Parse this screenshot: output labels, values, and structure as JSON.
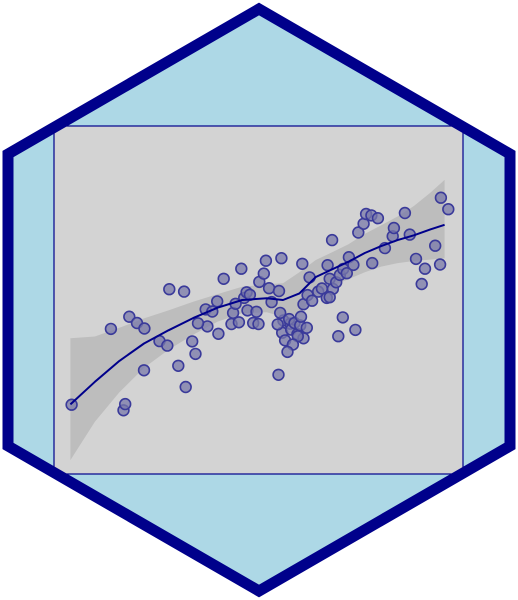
{
  "colors": {
    "hex_fill": "#add8e6",
    "hex_border": "#00008b",
    "panel_fill": "#d3d3d3",
    "panel_border": "#00008b",
    "band_fill": "#bdbdbd",
    "point_fill": "#7a7aaa",
    "point_stroke": "#3a3a9a",
    "smooth_line": "#00008b"
  },
  "chart_data": {
    "type": "scatter",
    "title": "",
    "xlabel": "",
    "ylabel": "",
    "xlim": [
      0,
      1
    ],
    "ylim": [
      0,
      1
    ],
    "grid": false,
    "legend": "none",
    "points": [
      [
        0.043,
        0.199
      ],
      [
        0.17,
        0.183
      ],
      [
        0.174,
        0.201
      ],
      [
        0.139,
        0.417
      ],
      [
        0.184,
        0.452
      ],
      [
        0.203,
        0.434
      ],
      [
        0.221,
        0.418
      ],
      [
        0.22,
        0.298
      ],
      [
        0.258,
        0.382
      ],
      [
        0.277,
        0.369
      ],
      [
        0.282,
        0.531
      ],
      [
        0.318,
        0.524
      ],
      [
        0.304,
        0.311
      ],
      [
        0.322,
        0.25
      ],
      [
        0.338,
        0.381
      ],
      [
        0.346,
        0.345
      ],
      [
        0.375,
        0.424
      ],
      [
        0.352,
        0.433
      ],
      [
        0.371,
        0.473
      ],
      [
        0.387,
        0.467
      ],
      [
        0.399,
        0.496
      ],
      [
        0.402,
        0.403
      ],
      [
        0.415,
        0.561
      ],
      [
        0.434,
        0.431
      ],
      [
        0.438,
        0.463
      ],
      [
        0.444,
        0.489
      ],
      [
        0.452,
        0.436
      ],
      [
        0.465,
        0.506
      ],
      [
        0.471,
        0.522
      ],
      [
        0.458,
        0.59
      ],
      [
        0.473,
        0.47
      ],
      [
        0.479,
        0.515
      ],
      [
        0.487,
        0.434
      ],
      [
        0.495,
        0.466
      ],
      [
        0.5,
        0.431
      ],
      [
        0.502,
        0.552
      ],
      [
        0.513,
        0.576
      ],
      [
        0.518,
        0.613
      ],
      [
        0.526,
        0.534
      ],
      [
        0.532,
        0.494
      ],
      [
        0.55,
        0.526
      ],
      [
        0.561,
        0.441
      ],
      [
        0.558,
        0.406
      ],
      [
        0.578,
        0.432
      ],
      [
        0.58,
        0.415
      ],
      [
        0.547,
        0.43
      ],
      [
        0.553,
        0.463
      ],
      [
        0.565,
        0.384
      ],
      [
        0.575,
        0.445
      ],
      [
        0.588,
        0.434
      ],
      [
        0.595,
        0.402
      ],
      [
        0.602,
        0.427
      ],
      [
        0.604,
        0.452
      ],
      [
        0.61,
        0.39
      ],
      [
        0.618,
        0.42
      ],
      [
        0.596,
        0.396
      ],
      [
        0.584,
        0.372
      ],
      [
        0.571,
        0.351
      ],
      [
        0.61,
        0.488
      ],
      [
        0.62,
        0.514
      ],
      [
        0.631,
        0.498
      ],
      [
        0.646,
        0.524
      ],
      [
        0.655,
        0.533
      ],
      [
        0.667,
        0.506
      ],
      [
        0.674,
        0.561
      ],
      [
        0.682,
        0.532
      ],
      [
        0.69,
        0.551
      ],
      [
        0.699,
        0.572
      ],
      [
        0.707,
        0.589
      ],
      [
        0.716,
        0.577
      ],
      [
        0.721,
        0.623
      ],
      [
        0.732,
        0.601
      ],
      [
        0.744,
        0.694
      ],
      [
        0.757,
        0.719
      ],
      [
        0.763,
        0.747
      ],
      [
        0.776,
        0.743
      ],
      [
        0.792,
        0.735
      ],
      [
        0.778,
        0.606
      ],
      [
        0.809,
        0.649
      ],
      [
        0.828,
        0.683
      ],
      [
        0.831,
        0.707
      ],
      [
        0.858,
        0.75
      ],
      [
        0.87,
        0.688
      ],
      [
        0.885,
        0.618
      ],
      [
        0.899,
        0.546
      ],
      [
        0.907,
        0.59
      ],
      [
        0.932,
        0.656
      ],
      [
        0.946,
        0.794
      ],
      [
        0.964,
        0.761
      ],
      [
        0.944,
        0.602
      ],
      [
        0.695,
        0.396
      ],
      [
        0.706,
        0.45
      ],
      [
        0.737,
        0.414
      ],
      [
        0.674,
        0.508
      ],
      [
        0.549,
        0.285
      ],
      [
        0.556,
        0.62
      ],
      [
        0.625,
        0.565
      ],
      [
        0.607,
        0.604
      ],
      [
        0.669,
        0.6
      ],
      [
        0.68,
        0.672
      ]
    ],
    "smooth": [
      [
        0.04,
        0.2
      ],
      [
        0.1,
        0.265
      ],
      [
        0.16,
        0.325
      ],
      [
        0.22,
        0.375
      ],
      [
        0.28,
        0.413
      ],
      [
        0.34,
        0.448
      ],
      [
        0.4,
        0.478
      ],
      [
        0.46,
        0.5
      ],
      [
        0.52,
        0.505
      ],
      [
        0.56,
        0.5
      ],
      [
        0.6,
        0.519
      ],
      [
        0.64,
        0.566
      ],
      [
        0.68,
        0.588
      ],
      [
        0.72,
        0.61
      ],
      [
        0.76,
        0.635
      ],
      [
        0.8,
        0.655
      ],
      [
        0.84,
        0.672
      ],
      [
        0.88,
        0.686
      ],
      [
        0.92,
        0.703
      ],
      [
        0.955,
        0.716
      ]
    ],
    "smooth_upper": [
      [
        0.04,
        0.39
      ],
      [
        0.1,
        0.395
      ],
      [
        0.16,
        0.42
      ],
      [
        0.22,
        0.447
      ],
      [
        0.28,
        0.47
      ],
      [
        0.34,
        0.495
      ],
      [
        0.4,
        0.517
      ],
      [
        0.46,
        0.538
      ],
      [
        0.52,
        0.545
      ],
      [
        0.56,
        0.548
      ],
      [
        0.6,
        0.58
      ],
      [
        0.64,
        0.615
      ],
      [
        0.68,
        0.637
      ],
      [
        0.72,
        0.66
      ],
      [
        0.76,
        0.69
      ],
      [
        0.8,
        0.715
      ],
      [
        0.84,
        0.74
      ],
      [
        0.88,
        0.77
      ],
      [
        0.92,
        0.808
      ],
      [
        0.955,
        0.845
      ]
    ],
    "smooth_lower": [
      [
        0.04,
        0.04
      ],
      [
        0.1,
        0.15
      ],
      [
        0.16,
        0.235
      ],
      [
        0.22,
        0.305
      ],
      [
        0.28,
        0.357
      ],
      [
        0.34,
        0.4
      ],
      [
        0.4,
        0.438
      ],
      [
        0.46,
        0.462
      ],
      [
        0.52,
        0.465
      ],
      [
        0.56,
        0.452
      ],
      [
        0.6,
        0.46
      ],
      [
        0.64,
        0.517
      ],
      [
        0.68,
        0.54
      ],
      [
        0.72,
        0.56
      ],
      [
        0.76,
        0.58
      ],
      [
        0.8,
        0.596
      ],
      [
        0.84,
        0.606
      ],
      [
        0.88,
        0.612
      ],
      [
        0.92,
        0.616
      ],
      [
        0.955,
        0.62
      ]
    ]
  }
}
